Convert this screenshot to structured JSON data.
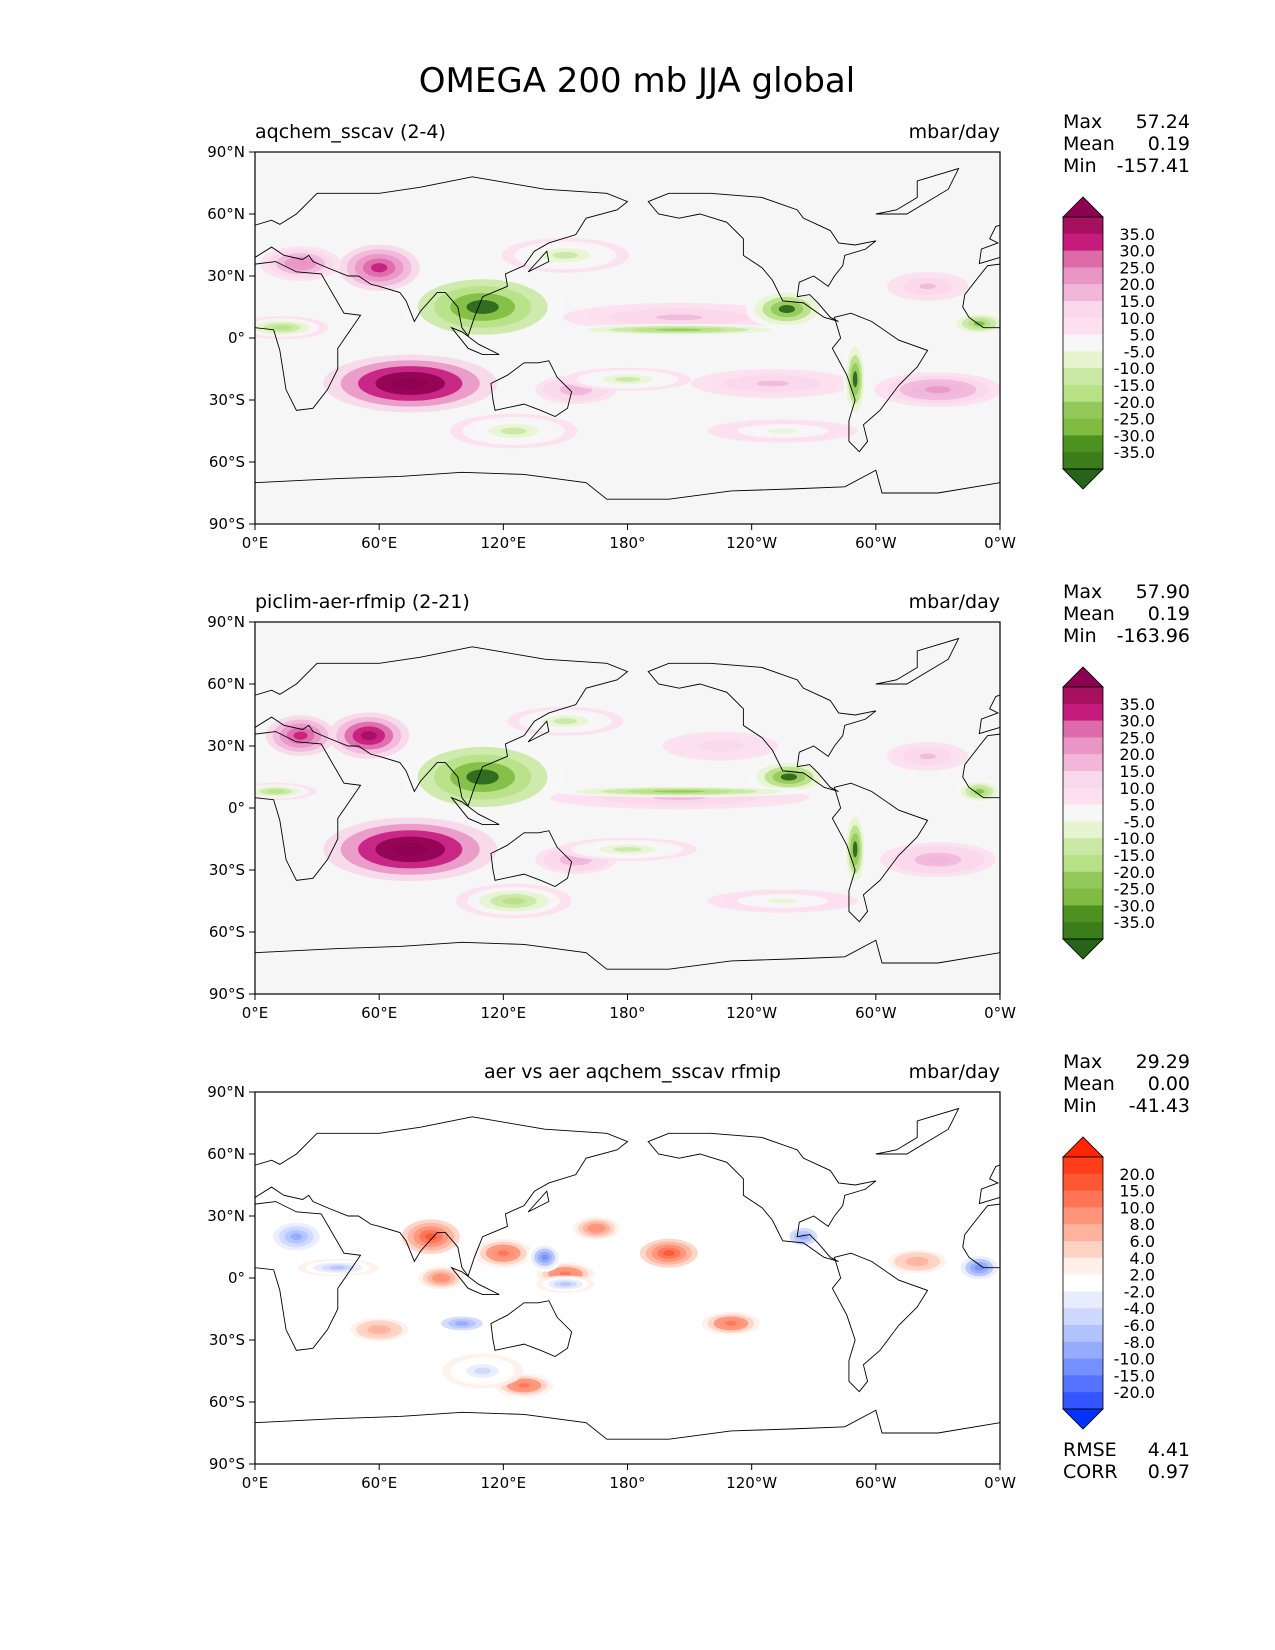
{
  "figure_title": "OMEGA 200 mb JJA global",
  "chart_data": [
    {
      "type": "heatmap",
      "title": "aqchem_sscav (2-4)",
      "units": "mbar/day",
      "stats": {
        "max_label": "Max",
        "max": "57.24",
        "mean_label": "Mean",
        "mean": "0.19",
        "min_label": "Min",
        "min": "-157.41"
      },
      "x_ticks": [
        "0°E",
        "60°E",
        "120°E",
        "180°",
        "120°W",
        "60°W",
        "0°W"
      ],
      "y_ticks": [
        "90°N",
        "60°N",
        "30°N",
        "0°",
        "30°S",
        "60°S",
        "90°S"
      ],
      "xlim": [
        0,
        360
      ],
      "ylim": [
        -90,
        90
      ],
      "colorbar": {
        "labels": [
          "35.0",
          "30.0",
          "25.0",
          "20.0",
          "15.0",
          "10.0",
          "5.0",
          "-5.0",
          "-10.0",
          "-15.0",
          "-20.0",
          "-25.0",
          "-30.0",
          "-35.0"
        ],
        "colors": [
          "#8e0152",
          "#a7105f",
          "#c51b7d",
          "#dd6aa9",
          "#e996c6",
          "#f1b6da",
          "#f8d8ea",
          "#fde0ef",
          "#f7f7f7",
          "#e6f5d0",
          "#c9e8a3",
          "#b8e186",
          "#93c95a",
          "#7fbc41",
          "#4d9221",
          "#3b7d1b",
          "#276419"
        ]
      },
      "features": [
        {
          "lon": 75,
          "lat": -22,
          "value": 45,
          "rlon": 30,
          "rlat": 10
        },
        {
          "lon": 60,
          "lat": 34,
          "value": 30,
          "rlon": 14,
          "rlat": 8
        },
        {
          "lon": 22,
          "lat": 36,
          "value": 20,
          "rlon": 14,
          "rlat": 6
        },
        {
          "lon": 205,
          "lat": 10,
          "value": 12,
          "rlon": 40,
          "rlat": 5
        },
        {
          "lon": 330,
          "lat": -25,
          "value": 18,
          "rlon": 22,
          "rlat": 6
        },
        {
          "lon": 250,
          "lat": -22,
          "value": 12,
          "rlon": 28,
          "rlat": 5
        },
        {
          "lon": 325,
          "lat": 25,
          "value": 12,
          "rlon": 14,
          "rlat": 5
        },
        {
          "lon": 155,
          "lat": -25,
          "value": 15,
          "rlon": 14,
          "rlat": 5
        },
        {
          "lon": 110,
          "lat": 15,
          "value": -40,
          "rlon": 28,
          "rlat": 12
        },
        {
          "lon": 150,
          "lat": 40,
          "value": -15,
          "rlon": 22,
          "rlat": 6
        },
        {
          "lon": 257,
          "lat": 14,
          "value": -35,
          "rlon": 14,
          "rlat": 7
        },
        {
          "lon": 205,
          "lat": 4,
          "value": -25,
          "rlon": 40,
          "rlat": 2
        },
        {
          "lon": 290,
          "lat": -20,
          "value": -35,
          "rlon": 4,
          "rlat": 14
        },
        {
          "lon": 350,
          "lat": 7,
          "value": -30,
          "rlon": 10,
          "rlat": 4
        },
        {
          "lon": 13,
          "lat": 5,
          "value": -20,
          "rlon": 16,
          "rlat": 4
        },
        {
          "lon": 125,
          "lat": -45,
          "value": -15,
          "rlon": 22,
          "rlat": 6
        },
        {
          "lon": 180,
          "lat": -20,
          "value": -15,
          "rlon": 22,
          "rlat": 4
        },
        {
          "lon": 255,
          "lat": -45,
          "value": -10,
          "rlon": 26,
          "rlat": 4
        }
      ]
    },
    {
      "type": "heatmap",
      "title": "piclim-aer-rfmip (2-21)",
      "units": "mbar/day",
      "stats": {
        "max_label": "Max",
        "max": "57.90",
        "mean_label": "Mean",
        "mean": "0.19",
        "min_label": "Min",
        "min": "-163.96"
      },
      "x_ticks": [
        "0°E",
        "60°E",
        "120°E",
        "180°",
        "120°W",
        "60°W",
        "0°W"
      ],
      "y_ticks": [
        "90°N",
        "60°N",
        "30°N",
        "0°",
        "30°S",
        "60°S",
        "90°S"
      ],
      "xlim": [
        0,
        360
      ],
      "ylim": [
        -90,
        90
      ],
      "colorbar": {
        "labels": [
          "35.0",
          "30.0",
          "25.0",
          "20.0",
          "15.0",
          "10.0",
          "5.0",
          "-5.0",
          "-10.0",
          "-15.0",
          "-20.0",
          "-25.0",
          "-30.0",
          "-35.0"
        ],
        "colors": [
          "#8e0152",
          "#a7105f",
          "#c51b7d",
          "#dd6aa9",
          "#e996c6",
          "#f1b6da",
          "#f8d8ea",
          "#fde0ef",
          "#f7f7f7",
          "#e6f5d0",
          "#c9e8a3",
          "#b8e186",
          "#93c95a",
          "#7fbc41",
          "#4d9221",
          "#3b7d1b",
          "#276419"
        ]
      },
      "features": [
        {
          "lon": 75,
          "lat": -20,
          "value": 45,
          "rlon": 30,
          "rlat": 11
        },
        {
          "lon": 55,
          "lat": 35,
          "value": 35,
          "rlon": 14,
          "rlat": 8
        },
        {
          "lon": 22,
          "lat": 35,
          "value": 30,
          "rlon": 12,
          "rlat": 7
        },
        {
          "lon": 205,
          "lat": 5,
          "value": 12,
          "rlon": 45,
          "rlat": 4
        },
        {
          "lon": 330,
          "lat": -25,
          "value": 15,
          "rlon": 20,
          "rlat": 6
        },
        {
          "lon": 325,
          "lat": 25,
          "value": 12,
          "rlon": 14,
          "rlat": 5
        },
        {
          "lon": 225,
          "lat": 30,
          "value": 8,
          "rlon": 20,
          "rlat": 5
        },
        {
          "lon": 155,
          "lat": -25,
          "value": 15,
          "rlon": 14,
          "rlat": 5
        },
        {
          "lon": 110,
          "lat": 15,
          "value": -40,
          "rlon": 28,
          "rlat": 13
        },
        {
          "lon": 150,
          "lat": 42,
          "value": -15,
          "rlon": 20,
          "rlat": 5
        },
        {
          "lon": 258,
          "lat": 15,
          "value": -35,
          "rlon": 14,
          "rlat": 6
        },
        {
          "lon": 205,
          "lat": 8,
          "value": -25,
          "rlon": 45,
          "rlat": 2
        },
        {
          "lon": 290,
          "lat": -20,
          "value": -35,
          "rlon": 4,
          "rlat": 14
        },
        {
          "lon": 350,
          "lat": 8,
          "value": -30,
          "rlon": 8,
          "rlat": 4
        },
        {
          "lon": 10,
          "lat": 8,
          "value": -20,
          "rlon": 14,
          "rlat": 3
        },
        {
          "lon": 125,
          "lat": -45,
          "value": -20,
          "rlon": 20,
          "rlat": 6
        },
        {
          "lon": 180,
          "lat": -20,
          "value": -15,
          "rlon": 24,
          "rlat": 4
        },
        {
          "lon": 255,
          "lat": -45,
          "value": -10,
          "rlon": 26,
          "rlat": 4
        }
      ]
    },
    {
      "type": "heatmap",
      "title": "aer vs aer aqchem_sscav rfmip",
      "units": "mbar/day",
      "stats": {
        "max_label": "Max",
        "max": "29.29",
        "mean_label": "Mean",
        "mean": "0.00",
        "min_label": "Min",
        "min": "-41.43"
      },
      "extra_stats": {
        "rmse_label": "RMSE",
        "rmse": "4.41",
        "corr_label": "CORR",
        "corr": "0.97"
      },
      "x_ticks": [
        "0°E",
        "60°E",
        "120°E",
        "180°",
        "120°W",
        "60°W",
        "0°W"
      ],
      "y_ticks": [
        "90°N",
        "60°N",
        "30°N",
        "0°",
        "30°S",
        "60°S",
        "90°S"
      ],
      "xlim": [
        0,
        360
      ],
      "ylim": [
        -90,
        90
      ],
      "colorbar": {
        "labels": [
          "20.0",
          "15.0",
          "10.0",
          "8.0",
          "6.0",
          "4.0",
          "2.0",
          "-2.0",
          "-4.0",
          "-6.0",
          "-8.0",
          "-10.0",
          "-15.0",
          "-20.0"
        ],
        "colors": [
          "#ff2600",
          "#ff3d18",
          "#ff5634",
          "#ff7555",
          "#ff9478",
          "#ffb39d",
          "#ffd2c4",
          "#fff0ea",
          "#ffffff",
          "#e8ecff",
          "#cfd8ff",
          "#b3c3ff",
          "#94abff",
          "#7590ff",
          "#5573ff",
          "#3355ff",
          "#0033ff"
        ]
      },
      "features": [
        {
          "lon": 85,
          "lat": 20,
          "value": 12,
          "rlon": 10,
          "rlat": 6
        },
        {
          "lon": 120,
          "lat": 12,
          "value": 10,
          "rlon": 10,
          "rlat": 5
        },
        {
          "lon": 150,
          "lat": 2,
          "value": 10,
          "rlon": 10,
          "rlat": 4
        },
        {
          "lon": 200,
          "lat": 12,
          "value": 12,
          "rlon": 10,
          "rlat": 5
        },
        {
          "lon": 230,
          "lat": -22,
          "value": 10,
          "rlon": 10,
          "rlat": 4
        },
        {
          "lon": 130,
          "lat": -52,
          "value": 10,
          "rlon": 10,
          "rlat": 4
        },
        {
          "lon": 90,
          "lat": 0,
          "value": 8,
          "rlon": 8,
          "rlat": 4
        },
        {
          "lon": 165,
          "lat": 24,
          "value": 8,
          "rlon": 8,
          "rlat": 4
        },
        {
          "lon": 320,
          "lat": 8,
          "value": 6,
          "rlon": 10,
          "rlat": 4
        },
        {
          "lon": 60,
          "lat": -25,
          "value": 6,
          "rlon": 10,
          "rlat": 4
        },
        {
          "lon": 20,
          "lat": 20,
          "value": -12,
          "rlon": 10,
          "rlat": 6
        },
        {
          "lon": 140,
          "lat": 10,
          "value": -15,
          "rlon": 6,
          "rlat": 5
        },
        {
          "lon": 100,
          "lat": -22,
          "value": -10,
          "rlon": 12,
          "rlat": 4
        },
        {
          "lon": 350,
          "lat": 5,
          "value": -15,
          "rlon": 8,
          "rlat": 5
        },
        {
          "lon": 265,
          "lat": 20,
          "value": -10,
          "rlon": 8,
          "rlat": 5
        },
        {
          "lon": 150,
          "lat": -3,
          "value": -8,
          "rlon": 10,
          "rlat": 3
        },
        {
          "lon": 110,
          "lat": -45,
          "value": -6,
          "rlon": 14,
          "rlat": 6
        },
        {
          "lon": 40,
          "lat": 5,
          "value": -8,
          "rlon": 14,
          "rlat": 3
        }
      ]
    }
  ]
}
